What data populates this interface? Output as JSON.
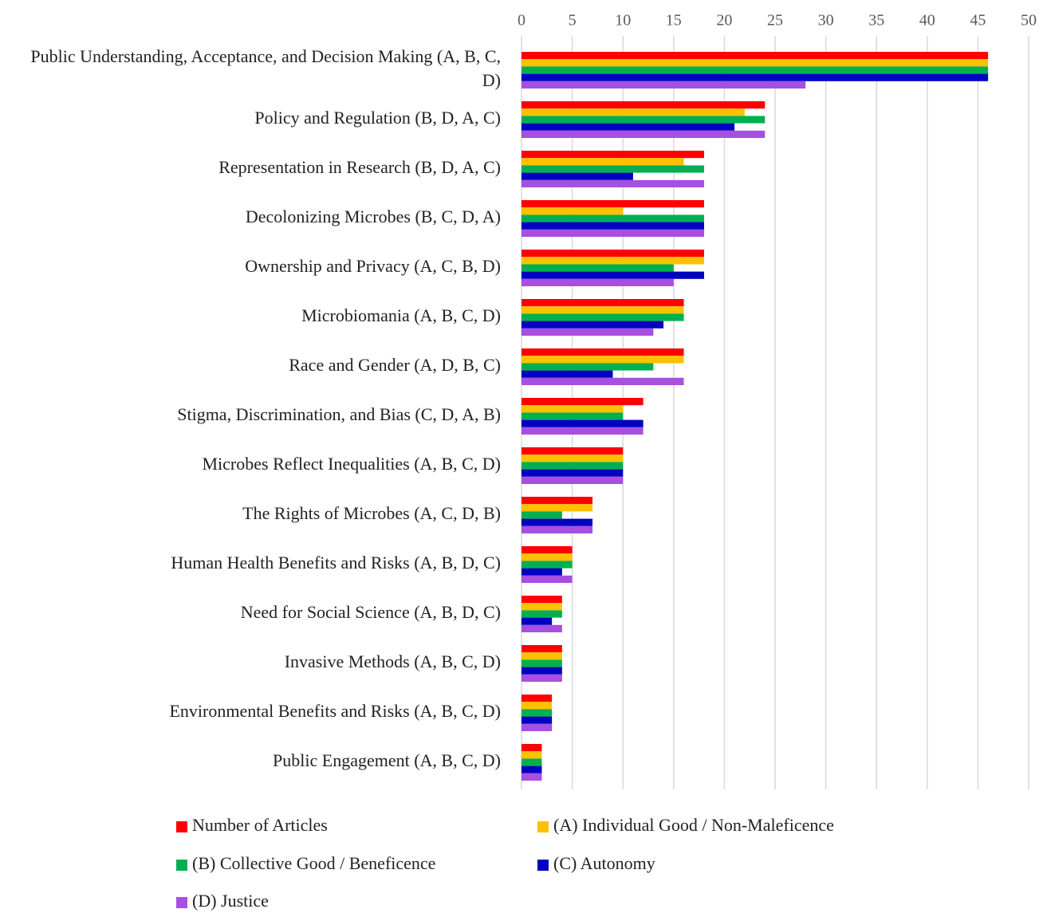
{
  "chart_data": {
    "type": "hbar",
    "categories": [
      "Public Understanding, Acceptance, and Decision Making (A, B, C, D)",
      "Policy and Regulation (B, D, A, C)",
      "Representation in Research (B, D, A, C)",
      "Decolonizing Microbes (B, C, D, A)",
      "Ownership and Privacy (A, C, B, D)",
      "Microbiomania (A, B, C, D)",
      "Race and Gender (A, D, B, C)",
      "Stigma, Discrimination, and Bias (C, D, A, B)",
      "Microbes Reflect Inequalities (A, B, C, D)",
      "The Rights of Microbes (A, C, D, B)",
      "Human Health Benefits and Risks (A, B, D, C)",
      "Need for Social Science (A, B, D, C)",
      "Invasive Methods (A, B, C, D)",
      "Environmental Benefits and Risks (A, B, C, D)",
      "Public Engagement (A, B, C, D)"
    ],
    "series": [
      {
        "name": "Number of Articles",
        "color": "#ff0000",
        "values": [
          46,
          24,
          18,
          18,
          18,
          16,
          16,
          12,
          10,
          7,
          5,
          4,
          4,
          3,
          2
        ]
      },
      {
        "name": "(A) Individual Good / Non-Maleficence",
        "color": "#ffc000",
        "values": [
          46,
          22,
          16,
          10,
          18,
          16,
          16,
          10,
          10,
          7,
          5,
          4,
          4,
          3,
          2
        ]
      },
      {
        "name": "(B) Collective Good / Beneficence",
        "color": "#00b050",
        "values": [
          46,
          24,
          18,
          18,
          15,
          16,
          13,
          10,
          10,
          4,
          5,
          4,
          4,
          3,
          2
        ]
      },
      {
        "name": "(C) Autonomy",
        "color": "#0000c0",
        "values": [
          46,
          21,
          11,
          18,
          18,
          14,
          9,
          12,
          10,
          7,
          4,
          3,
          4,
          3,
          2
        ]
      },
      {
        "name": "(D) Justice",
        "color": "#a64fe0",
        "values": [
          28,
          24,
          18,
          18,
          15,
          13,
          16,
          12,
          10,
          7,
          5,
          4,
          4,
          3,
          2
        ]
      }
    ],
    "xlim": [
      0,
      50
    ],
    "xticks": [
      0,
      5,
      10,
      15,
      20,
      25,
      30,
      35,
      40,
      45,
      50
    ],
    "grid": true
  }
}
